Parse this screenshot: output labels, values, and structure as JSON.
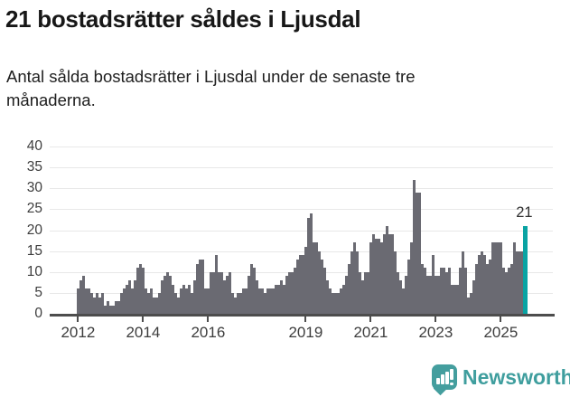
{
  "header": {
    "title": "21 bostadsrätter såldes i Ljusdal",
    "subtitle": "Antal sålda bostadsrätter i Ljusdal under de senaste tre månaderna."
  },
  "chart_data": {
    "type": "bar",
    "title": "21 bostadsrätter såldes i Ljusdal",
    "subtitle": "Antal sålda bostadsrätter i Ljusdal under de senaste tre månaderna.",
    "x_start_month": "2012-01",
    "frequency": "monthly",
    "values": [
      6,
      8,
      9,
      6,
      6,
      5,
      4,
      5,
      4,
      5,
      2,
      3,
      2,
      2,
      3,
      3,
      5,
      6,
      7,
      8,
      6,
      8,
      11,
      12,
      11,
      6,
      5,
      6,
      4,
      4,
      5,
      8,
      9,
      10,
      9,
      7,
      5,
      4,
      6,
      7,
      6,
      7,
      5,
      8,
      12,
      13,
      13,
      6,
      6,
      10,
      10,
      14,
      10,
      10,
      8,
      9,
      10,
      5,
      4,
      5,
      5,
      6,
      6,
      9,
      12,
      11,
      8,
      6,
      6,
      5,
      6,
      6,
      6,
      7,
      7,
      8,
      7,
      9,
      10,
      10,
      11,
      13,
      14,
      14,
      16,
      23,
      24,
      17,
      17,
      15,
      13,
      11,
      8,
      6,
      5,
      5,
      5,
      6,
      7,
      9,
      12,
      15,
      17,
      15,
      10,
      8,
      10,
      10,
      17,
      19,
      18,
      18,
      17,
      19,
      21,
      19,
      19,
      15,
      10,
      8,
      6,
      9,
      13,
      17,
      32,
      29,
      29,
      12,
      11,
      9,
      9,
      14,
      9,
      9,
      11,
      11,
      10,
      11,
      7,
      7,
      7,
      11,
      15,
      11,
      4,
      5,
      8,
      12,
      14,
      15,
      14,
      12,
      13,
      17,
      17,
      17,
      17,
      11,
      10,
      11,
      12,
      17,
      15,
      15,
      15,
      21
    ],
    "highlight": {
      "index": 165,
      "value": 21,
      "label": "21"
    },
    "annotation": "21",
    "bar_color": "#6a6a72",
    "highlight_color": "#09a3a3",
    "y_ticks": [
      0,
      5,
      10,
      15,
      20,
      25,
      30,
      35,
      40
    ],
    "ylim": [
      0,
      40
    ],
    "x_ticks": [
      {
        "label": "2012",
        "month": 0
      },
      {
        "label": "2014",
        "month": 24
      },
      {
        "label": "2016",
        "month": 48
      },
      {
        "label": "2019",
        "month": 84
      },
      {
        "label": "2021",
        "month": 108
      },
      {
        "label": "2023",
        "month": 132
      },
      {
        "label": "2025",
        "month": 156
      }
    ],
    "grid": true,
    "legend": "none"
  },
  "footer": {
    "brand": "Newsworthy"
  }
}
